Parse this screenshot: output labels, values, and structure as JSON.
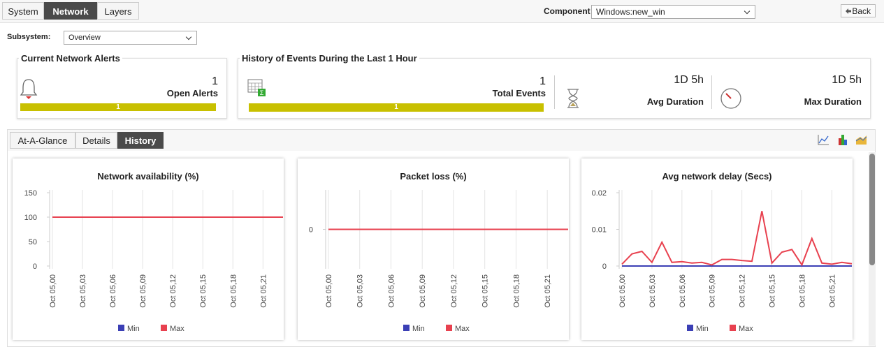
{
  "tabs": [
    "System",
    "Network",
    "Layers"
  ],
  "component_label": "Component",
  "component_value": "Windows:new_win",
  "back": "Back",
  "subsystem_label": "Subsystem:",
  "subsystem_value": "Overview",
  "alerts": {
    "title": "Current Network Alerts",
    "count": 1,
    "label": "Open Alerts",
    "bar_value": 1
  },
  "history": {
    "title": "History of Events During the Last 1 Hour",
    "total": 1,
    "total_label": "Total Events",
    "bar_value": 1,
    "avg": "1D 5h",
    "avg_label": "Avg Duration",
    "max": "1D 5h",
    "max_label": "Max Duration"
  },
  "view_tabs": [
    "At-A-Glance",
    "Details",
    "History"
  ],
  "chart_data": [
    {
      "type": "line",
      "title": "Network availability (%)",
      "categories": [
        "Oct 05,00",
        null,
        null,
        "Oct 05,03",
        null,
        null,
        "Oct 05,06",
        null,
        null,
        "Oct 05,09",
        null,
        null,
        "Oct 05,12",
        null,
        null,
        "Oct 05,15",
        null,
        null,
        "Oct 05,18",
        null,
        null,
        "Oct 05,21",
        null,
        null
      ],
      "series": [
        {
          "name": "Min",
          "color": "#3b3fb5",
          "values": [
            100,
            100,
            100,
            100,
            100,
            100,
            100,
            100,
            100,
            100,
            100,
            100,
            100,
            100,
            100,
            100,
            100,
            100,
            100,
            100,
            100,
            100,
            100,
            100
          ]
        },
        {
          "name": "Max",
          "color": "#e8414f",
          "values": [
            100,
            100,
            100,
            100,
            100,
            100,
            100,
            100,
            100,
            100,
            100,
            100,
            100,
            100,
            100,
            100,
            100,
            100,
            100,
            100,
            100,
            100,
            100,
            100
          ]
        }
      ],
      "ylim": [
        0,
        150
      ],
      "yticks": [
        0,
        50,
        100,
        150
      ],
      "grid": true
    },
    {
      "type": "line",
      "title": "Packet loss (%)",
      "categories": [
        "Oct 05,00",
        null,
        null,
        "Oct 05,03",
        null,
        null,
        "Oct 05,06",
        null,
        null,
        "Oct 05,09",
        null,
        null,
        "Oct 05,12",
        null,
        null,
        "Oct 05,15",
        null,
        null,
        "Oct 05,18",
        null,
        null,
        "Oct 05,21",
        null,
        null
      ],
      "series": [
        {
          "name": "Min",
          "color": "#3b3fb5",
          "values": [
            0,
            0,
            0,
            0,
            0,
            0,
            0,
            0,
            0,
            0,
            0,
            0,
            0,
            0,
            0,
            0,
            0,
            0,
            0,
            0,
            0,
            0,
            0,
            0
          ]
        },
        {
          "name": "Max",
          "color": "#e8414f",
          "values": [
            0,
            0,
            0,
            0,
            0,
            0,
            0,
            0,
            0,
            0,
            0,
            0,
            0,
            0,
            0,
            0,
            0,
            0,
            0,
            0,
            0,
            0,
            0,
            0
          ]
        }
      ],
      "ylim": [
        -1,
        1
      ],
      "yticks": [
        0
      ],
      "grid": true
    },
    {
      "type": "line",
      "title": "Avg network delay (Secs)",
      "categories": [
        "Oct 05,00",
        null,
        null,
        "Oct 05,03",
        null,
        null,
        "Oct 05,06",
        null,
        null,
        "Oct 05,09",
        null,
        null,
        "Oct 05,12",
        null,
        null,
        "Oct 05,15",
        null,
        null,
        "Oct 05,18",
        null,
        null,
        "Oct 05,21",
        null,
        null
      ],
      "series": [
        {
          "name": "Min",
          "color": "#3b3fb5",
          "values": [
            0,
            0,
            0,
            0,
            0,
            0,
            0,
            0,
            0,
            0,
            0,
            0,
            0,
            0,
            0,
            0,
            0,
            0,
            0,
            0,
            0,
            0,
            0,
            0
          ]
        },
        {
          "name": "Max",
          "color": "#e8414f",
          "values": [
            0.0005,
            0.0033,
            0.004,
            0.001,
            0.0065,
            0.001,
            0.0012,
            0.0008,
            0.001,
            0.0003,
            0.0018,
            0.0018,
            0.0015,
            0.0013,
            0.015,
            0.0008,
            0.0038,
            0.0045,
            0.0003,
            0.0075,
            0.0008,
            0.0005,
            0.001,
            0.0006
          ]
        }
      ],
      "ylim": [
        0,
        0.02
      ],
      "yticks": [
        0,
        0.01,
        0.02
      ],
      "grid": true
    }
  ]
}
